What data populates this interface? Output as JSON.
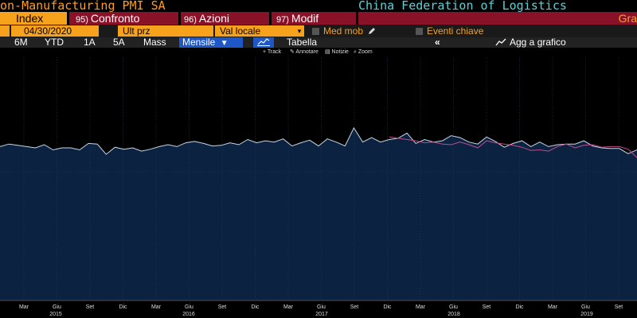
{
  "title": {
    "left": "on-Manufacturing PMI SA",
    "right": "China Federation of Logistics"
  },
  "fkeys": {
    "index": "Index",
    "confronto": {
      "num": "95)",
      "label": "Confronto"
    },
    "azioni": {
      "num": "96)",
      "label": "Azioni"
    },
    "modif": {
      "num": "97)",
      "label": "Modif"
    },
    "graf": "Gra"
  },
  "controls": {
    "date": "04/30/2020",
    "price": "Ult prz",
    "currency": "Val locale",
    "currency_arrow": "▾",
    "moving_average": "Med mob",
    "key_events": "Eventi chiave"
  },
  "range": {
    "buttons": [
      "6M",
      "YTD",
      "1A",
      "5A",
      "Mass"
    ],
    "frequency": "Mensile",
    "frequency_arrow": "▼",
    "table": "Tabella",
    "collapse": "«",
    "add_to_chart": "Agg a grafico"
  },
  "toolbar": {
    "track": "Track",
    "annotate": "Annotare",
    "news": "Notizie",
    "zoom": "Zoom"
  },
  "colors": {
    "accent_orange": "#f7a21c",
    "tab_red": "#8a1228",
    "chart_fill": "#0b2340",
    "line_main": "#c9d6e6",
    "line_secondary": "#c24a8a",
    "selected_blue": "#1f57c6"
  },
  "chart_data": {
    "type": "area",
    "months_visible": [
      "Mar",
      "Giu",
      "Set",
      "Dic",
      "Mar",
      "Giu",
      "Set",
      "Dic",
      "Mar",
      "Giu",
      "Set",
      "Dic",
      "Mar",
      "Giu",
      "Set",
      "Dic",
      "Mar",
      "Giu",
      "Set"
    ],
    "years": [
      "2015",
      "2016",
      "2017",
      "2018",
      "2019"
    ],
    "series": [
      {
        "values": [
          53.9,
          54.3,
          54.1,
          53.9,
          53.7,
          54.2,
          53.4,
          53.7,
          53.7,
          53.4,
          54.4,
          54.3,
          52.7,
          53.8,
          53.5,
          53.7,
          53.2,
          53.5,
          53.9,
          54.2,
          53.9,
          54.5,
          54.7,
          54.4,
          54.0,
          54.1,
          54.5,
          54.2,
          55.0,
          54.5,
          54.8,
          54.6,
          55.1,
          54.0,
          54.5,
          54.9,
          54.0,
          55.1,
          54.6,
          54.0,
          56.8,
          54.6,
          55.3,
          54.6,
          55.0,
          55.2,
          56.0,
          54.4,
          55.0,
          54.6,
          54.8,
          55.6,
          55.3,
          54.6,
          54.3,
          55.4,
          54.7,
          53.8,
          54.4,
          54.8,
          53.9,
          54.6,
          53.9,
          54.2,
          54.3,
          54.3,
          54.8,
          54.0,
          53.7,
          53.6,
          53.6,
          52.8,
          53.4
        ]
      },
      {
        "values": [
          55.4,
          55.2,
          55.0,
          54.8,
          54.5,
          54.6,
          54.3,
          54.2,
          54.6,
          54.2,
          53.7,
          54.8,
          54.5,
          54.3,
          54.1,
          53.8,
          53.3,
          53.4,
          53.2,
          53.9,
          54.3,
          53.7,
          54.1,
          54.2,
          53.8,
          53.9,
          53.9,
          53.5,
          52.2
        ]
      }
    ],
    "ylim": [
      30,
      60
    ],
    "grid": true
  }
}
